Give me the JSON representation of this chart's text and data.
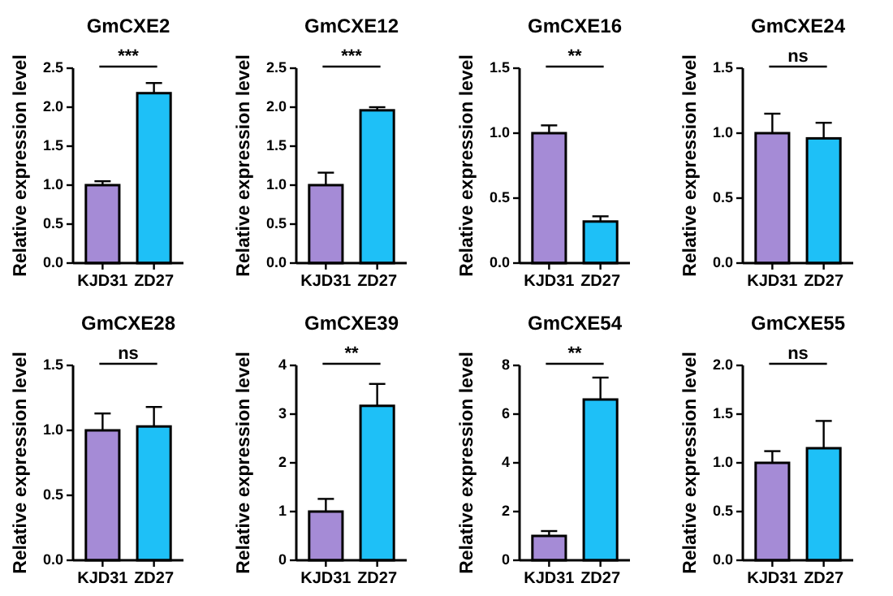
{
  "chart_data": [
    {
      "type": "bar",
      "title": "GmCXE2",
      "ylabel": "Relative expression level",
      "categories": [
        "KJD31",
        "ZD27"
      ],
      "values": [
        1.0,
        2.18
      ],
      "errors": [
        0.05,
        0.13
      ],
      "colors": [
        "#a58bd6",
        "#1ec0f7"
      ],
      "ylim": [
        0,
        2.5
      ],
      "yticks": [
        {
          "value": 0,
          "label": "0.0"
        },
        {
          "value": 0.5,
          "label": "0.5"
        },
        {
          "value": 1,
          "label": "1.0"
        },
        {
          "value": 1.5,
          "label": "1.5"
        },
        {
          "value": 2,
          "label": "2.0"
        },
        {
          "value": 2.5,
          "label": "2.5"
        }
      ],
      "annotations": [
        "***"
      ]
    },
    {
      "type": "bar",
      "title": "GmCXE12",
      "ylabel": "Relative expression level",
      "categories": [
        "KJD31",
        "ZD27"
      ],
      "values": [
        1.0,
        1.96
      ],
      "errors": [
        0.16,
        0.04
      ],
      "colors": [
        "#a58bd6",
        "#1ec0f7"
      ],
      "ylim": [
        0,
        2.5
      ],
      "yticks": [
        {
          "value": 0,
          "label": "0.0"
        },
        {
          "value": 0.5,
          "label": "0.5"
        },
        {
          "value": 1,
          "label": "1.0"
        },
        {
          "value": 1.5,
          "label": "1.5"
        },
        {
          "value": 2,
          "label": "2.0"
        },
        {
          "value": 2.5,
          "label": "2.5"
        }
      ],
      "annotations": [
        "***"
      ]
    },
    {
      "type": "bar",
      "title": "GmCXE16",
      "ylabel": "Relative expression level",
      "categories": [
        "KJD31",
        "ZD27"
      ],
      "values": [
        1.0,
        0.32
      ],
      "errors": [
        0.06,
        0.04
      ],
      "colors": [
        "#a58bd6",
        "#1ec0f7"
      ],
      "ylim": [
        0,
        1.5
      ],
      "yticks": [
        {
          "value": 0,
          "label": "0.0"
        },
        {
          "value": 0.5,
          "label": "0.5"
        },
        {
          "value": 1,
          "label": "1.0"
        },
        {
          "value": 1.5,
          "label": "1.5"
        }
      ],
      "annotations": [
        "**"
      ]
    },
    {
      "type": "bar",
      "title": "GmCXE24",
      "ylabel": "Relative expression level",
      "categories": [
        "KJD31",
        "ZD27"
      ],
      "values": [
        1.0,
        0.96
      ],
      "errors": [
        0.15,
        0.12
      ],
      "colors": [
        "#a58bd6",
        "#1ec0f7"
      ],
      "ylim": [
        0,
        1.5
      ],
      "yticks": [
        {
          "value": 0,
          "label": "0.0"
        },
        {
          "value": 0.5,
          "label": "0.5"
        },
        {
          "value": 1,
          "label": "1.0"
        },
        {
          "value": 1.5,
          "label": "1.5"
        }
      ],
      "annotations": [
        "ns"
      ]
    },
    {
      "type": "bar",
      "title": "GmCXE28",
      "ylabel": "Relative expression level",
      "categories": [
        "KJD31",
        "ZD27"
      ],
      "values": [
        1.0,
        1.03
      ],
      "errors": [
        0.13,
        0.15
      ],
      "colors": [
        "#a58bd6",
        "#1ec0f7"
      ],
      "ylim": [
        0,
        1.5
      ],
      "yticks": [
        {
          "value": 0,
          "label": "0.0"
        },
        {
          "value": 0.5,
          "label": "0.5"
        },
        {
          "value": 1,
          "label": "1.0"
        },
        {
          "value": 1.5,
          "label": "1.5"
        }
      ],
      "annotations": [
        "ns"
      ]
    },
    {
      "type": "bar",
      "title": "GmCXE39",
      "ylabel": "Relative expression level",
      "categories": [
        "KJD31",
        "ZD27"
      ],
      "values": [
        1.0,
        3.17
      ],
      "errors": [
        0.26,
        0.45
      ],
      "colors": [
        "#a58bd6",
        "#1ec0f7"
      ],
      "ylim": [
        0,
        4
      ],
      "yticks": [
        0,
        1,
        2,
        3,
        4
      ],
      "annotations": [
        "**"
      ]
    },
    {
      "type": "bar",
      "title": "GmCXE54",
      "ylabel": "Relative expression level",
      "categories": [
        "KJD31",
        "ZD27"
      ],
      "values": [
        1.0,
        6.6
      ],
      "errors": [
        0.2,
        0.9
      ],
      "colors": [
        "#a58bd6",
        "#1ec0f7"
      ],
      "ylim": [
        0,
        8
      ],
      "yticks": [
        0,
        2,
        4,
        6,
        8
      ],
      "annotations": [
        "**"
      ]
    },
    {
      "type": "bar",
      "title": "GmCXE55",
      "ylabel": "Relative expression level",
      "categories": [
        "KJD31",
        "ZD27"
      ],
      "values": [
        1.0,
        1.15
      ],
      "errors": [
        0.12,
        0.28
      ],
      "colors": [
        "#a58bd6",
        "#1ec0f7"
      ],
      "ylim": [
        0,
        2
      ],
      "yticks": [
        {
          "value": 0,
          "label": "0.0"
        },
        {
          "value": 0.5,
          "label": "0.5"
        },
        {
          "value": 1,
          "label": "1.0"
        },
        {
          "value": 1.5,
          "label": "1.5"
        },
        {
          "value": 2,
          "label": "2.0"
        }
      ],
      "annotations": [
        "ns"
      ]
    }
  ]
}
